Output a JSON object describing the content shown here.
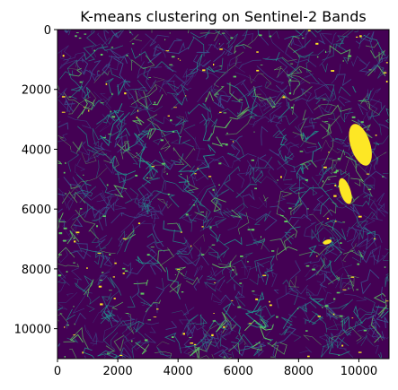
{
  "chart_data": {
    "type": "heatmap",
    "title": "K-means clustering on Sentinel-2 Bands",
    "xlabel": "",
    "ylabel": "",
    "xlim": [
      0,
      11000
    ],
    "ylim": [
      11000,
      0
    ],
    "x_ticks": [
      "0",
      "2000",
      "4000",
      "6000",
      "8000",
      "10000"
    ],
    "y_ticks": [
      "0",
      "2000",
      "4000",
      "6000",
      "8000",
      "10000"
    ],
    "colormap": "viridis",
    "colors": {
      "background": "#440154",
      "cluster_mid": "#3b528b",
      "cluster_teal": "#21918c",
      "cluster_green": "#5ec962",
      "cluster_yellow": "#fde725"
    },
    "highlighted_regions": [
      {
        "cluster": "yellow",
        "x_center": 10050,
        "y_center": 3850,
        "x_extent": [
          9700,
          10350
        ],
        "y_extent": [
          2950,
          4400
        ]
      },
      {
        "cluster": "yellow",
        "x_center": 9550,
        "y_center": 5400,
        "x_extent": [
          9400,
          9750
        ],
        "y_extent": [
          4900,
          5800
        ]
      },
      {
        "cluster": "yellow",
        "x_center": 8950,
        "y_center": 7100,
        "x_extent": [
          8800,
          9100
        ],
        "y_extent": [
          7000,
          7150
        ]
      }
    ]
  }
}
